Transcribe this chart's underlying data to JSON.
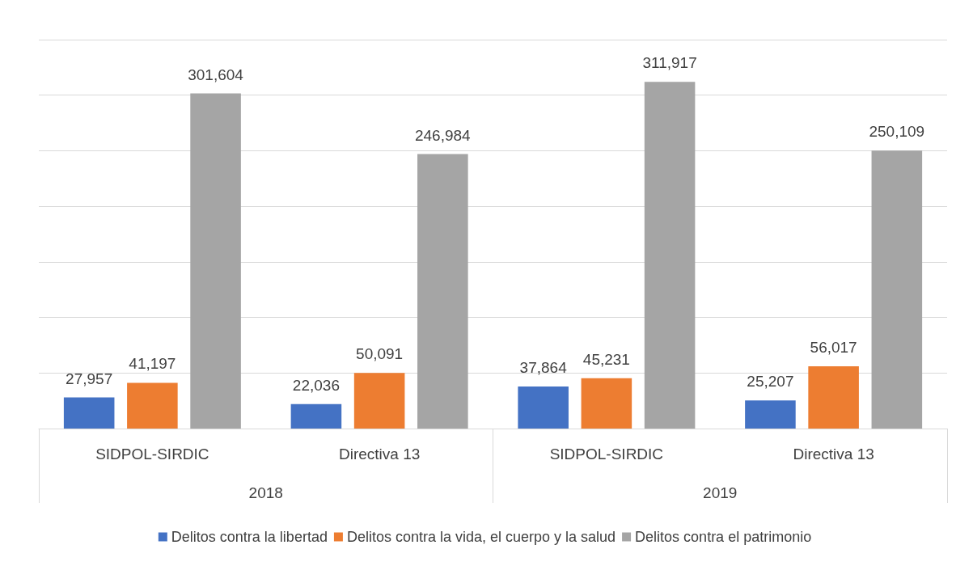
{
  "chart_data": {
    "type": "bar",
    "categories": [
      "SIDPOL-SIRDIC",
      "Directiva 13",
      "SIDPOL-SIRDIC",
      "Directiva 13"
    ],
    "series": [
      {
        "name": "Delitos contra la libertad",
        "color": "#4472c4",
        "values": [
          27957,
          22036,
          37864,
          25207
        ],
        "value_labels": [
          "27,957",
          "22,036",
          "37,864",
          "25,207"
        ]
      },
      {
        "name": "Delitos contra la vida, el cuerpo y la salud",
        "color": "#ed7d31",
        "values": [
          41197,
          50091,
          45231,
          56017
        ],
        "value_labels": [
          "41,197",
          "50,091",
          "45,231",
          "56,017"
        ]
      },
      {
        "name": "Delitos contra el patrimonio",
        "color": "#a5a5a5",
        "values": [
          301604,
          246984,
          311917,
          250109
        ],
        "value_labels": [
          "301,604",
          "246,984",
          "311,917",
          "250,109"
        ]
      }
    ],
    "annotations": [
      "2018",
      "2019"
    ],
    "grid": "y",
    "legend": "bottom",
    "tick_labels": "x"
  }
}
